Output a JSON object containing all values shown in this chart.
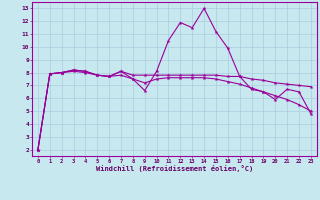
{
  "x": [
    0,
    1,
    2,
    3,
    4,
    5,
    6,
    7,
    8,
    9,
    10,
    11,
    12,
    13,
    14,
    15,
    16,
    17,
    18,
    19,
    20,
    21,
    22,
    23
  ],
  "line1": [
    2.0,
    7.9,
    8.0,
    8.2,
    8.1,
    7.8,
    7.7,
    8.1,
    7.5,
    6.6,
    8.1,
    10.5,
    11.9,
    11.5,
    13.0,
    11.2,
    9.9,
    7.7,
    6.7,
    6.5,
    5.9,
    6.7,
    6.5,
    4.8
  ],
  "line2": [
    2.0,
    7.9,
    8.0,
    8.2,
    8.1,
    7.8,
    7.7,
    8.1,
    7.8,
    7.8,
    7.8,
    7.8,
    7.8,
    7.8,
    7.8,
    7.8,
    7.7,
    7.7,
    7.5,
    7.4,
    7.2,
    7.1,
    7.0,
    6.9
  ],
  "line3": [
    2.0,
    7.9,
    8.0,
    8.1,
    8.0,
    7.8,
    7.7,
    7.8,
    7.5,
    7.2,
    7.5,
    7.6,
    7.6,
    7.6,
    7.6,
    7.5,
    7.3,
    7.1,
    6.8,
    6.5,
    6.2,
    5.9,
    5.5,
    5.0
  ],
  "line_color": "#990099",
  "bg_color": "#c8e8f0",
  "grid_color": "#aaccdd",
  "xlabel": "Windchill (Refroidissement éolien,°C)",
  "xlabel_color": "#660066",
  "ylim": [
    1.5,
    13.5
  ],
  "xlim": [
    -0.5,
    23.5
  ],
  "yticks": [
    2,
    3,
    4,
    5,
    6,
    7,
    8,
    9,
    10,
    11,
    12,
    13
  ],
  "xticks": [
    0,
    1,
    2,
    3,
    4,
    5,
    6,
    7,
    8,
    9,
    10,
    11,
    12,
    13,
    14,
    15,
    16,
    17,
    18,
    19,
    20,
    21,
    22,
    23
  ]
}
